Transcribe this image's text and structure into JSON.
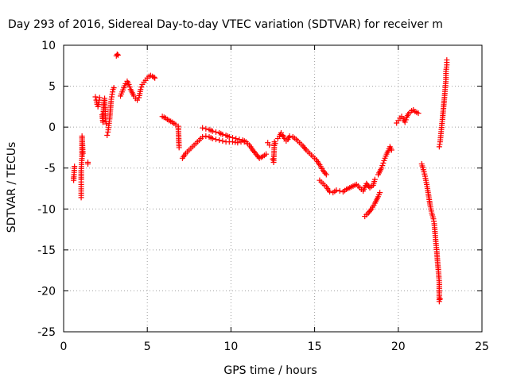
{
  "chart_data": {
    "type": "scatter",
    "title": "Day 293 of 2016, Sidereal Day-to-day VTEC variation (SDTVAR) for receiver m",
    "xlabel": "GPS time / hours",
    "ylabel": "SDTVAR / TECUs",
    "xlim": [
      0,
      25
    ],
    "ylim": [
      -25,
      10
    ],
    "xticks": [
      "0",
      "5",
      "10",
      "15",
      "20",
      "25"
    ],
    "yticks": [
      "10",
      "5",
      "0",
      "-5",
      "-10",
      "-15",
      "-20",
      "-25"
    ],
    "grid": true,
    "marker": "+",
    "color": "#ff0000",
    "series": [
      {
        "name": "SDTVAR",
        "segments": [
          [
            [
              0.6,
              -6.2
            ],
            [
              0.6,
              -6.5
            ],
            [
              0.65,
              -4.8
            ]
          ],
          [
            [
              1.05,
              -8.6
            ],
            [
              1.05,
              -7.8
            ],
            [
              1.05,
              -7.0
            ],
            [
              1.05,
              -6.4
            ],
            [
              1.05,
              -5.3
            ],
            [
              1.1,
              -3.6
            ],
            [
              1.1,
              -2.7
            ],
            [
              1.1,
              -1.8
            ],
            [
              1.1,
              -1.1
            ],
            [
              1.15,
              -3.2
            ]
          ],
          [
            [
              1.45,
              -4.5
            ],
            [
              1.45,
              -4.3
            ]
          ],
          [
            [
              1.9,
              3.7
            ],
            [
              1.95,
              3.3
            ],
            [
              2.0,
              2.8
            ],
            [
              2.05,
              2.5
            ],
            [
              2.1,
              3.0
            ],
            [
              2.15,
              3.6
            ]
          ],
          [
            [
              2.3,
              1.5
            ],
            [
              2.35,
              0.6
            ],
            [
              2.4,
              2.8
            ],
            [
              2.45,
              3.5
            ],
            [
              2.5,
              1.0
            ],
            [
              2.55,
              0.4
            ]
          ],
          [
            [
              2.6,
              -1.0
            ],
            [
              2.65,
              -0.6
            ],
            [
              2.7,
              0.2
            ],
            [
              2.75,
              1.0
            ],
            [
              2.8,
              2.2
            ],
            [
              2.85,
              3.4
            ],
            [
              2.9,
              4.0
            ],
            [
              2.95,
              4.6
            ],
            [
              3.0,
              4.8
            ]
          ],
          [
            [
              3.15,
              8.7
            ],
            [
              3.2,
              8.9
            ],
            [
              3.25,
              8.8
            ]
          ],
          [
            [
              3.4,
              3.8
            ],
            [
              3.5,
              4.3
            ],
            [
              3.6,
              4.8
            ],
            [
              3.7,
              5.3
            ],
            [
              3.8,
              5.6
            ],
            [
              3.9,
              5.2
            ],
            [
              4.0,
              4.6
            ],
            [
              4.1,
              4.2
            ],
            [
              4.2,
              3.8
            ],
            [
              4.3,
              3.5
            ],
            [
              4.4,
              3.3
            ],
            [
              4.5,
              3.6
            ],
            [
              4.6,
              4.6
            ],
            [
              4.7,
              5.2
            ],
            [
              4.8,
              5.5
            ],
            [
              4.9,
              5.7
            ],
            [
              5.0,
              6.0
            ],
            [
              5.1,
              6.2
            ],
            [
              5.2,
              6.3
            ],
            [
              5.3,
              6.2
            ],
            [
              5.4,
              6.1
            ],
            [
              5.45,
              6.0
            ]
          ],
          [
            [
              5.9,
              1.3
            ],
            [
              6.1,
              1.1
            ],
            [
              6.3,
              0.8
            ],
            [
              6.5,
              0.6
            ],
            [
              6.7,
              0.3
            ],
            [
              6.85,
              0.1
            ],
            [
              6.9,
              -2.5
            ]
          ],
          [
            [
              7.1,
              -3.8
            ],
            [
              7.3,
              -3.2
            ],
            [
              7.5,
              -2.8
            ],
            [
              7.7,
              -2.4
            ],
            [
              7.9,
              -2.0
            ],
            [
              8.1,
              -1.6
            ],
            [
              8.3,
              -1.2
            ],
            [
              8.5,
              -1.1
            ],
            [
              8.7,
              -1.2
            ],
            [
              8.9,
              -1.4
            ],
            [
              9.1,
              -1.5
            ],
            [
              9.3,
              -1.6
            ],
            [
              9.5,
              -1.7
            ],
            [
              9.7,
              -1.8
            ],
            [
              9.9,
              -1.8
            ],
            [
              10.1,
              -1.8
            ],
            [
              10.4,
              -1.9
            ],
            [
              10.6,
              -1.8
            ],
            [
              10.8,
              -1.8
            ]
          ],
          [
            [
              8.3,
              -0.1
            ],
            [
              8.5,
              -0.2
            ],
            [
              8.7,
              -0.3
            ],
            [
              8.9,
              -0.5
            ],
            [
              9.1,
              -0.6
            ],
            [
              9.3,
              -0.7
            ],
            [
              9.5,
              -0.9
            ],
            [
              9.7,
              -1.0
            ],
            [
              9.9,
              -1.2
            ],
            [
              10.1,
              -1.3
            ],
            [
              10.3,
              -1.4
            ],
            [
              10.5,
              -1.5
            ],
            [
              10.7,
              -1.6
            ],
            [
              10.9,
              -1.8
            ],
            [
              11.1,
              -2.2
            ],
            [
              11.3,
              -2.8
            ],
            [
              11.5,
              -3.3
            ],
            [
              11.7,
              -3.8
            ],
            [
              11.9,
              -3.6
            ],
            [
              12.1,
              -3.3
            ]
          ],
          [
            [
              12.2,
              -1.9
            ],
            [
              12.3,
              -2.2
            ]
          ],
          [
            [
              12.5,
              -3.9
            ],
            [
              12.55,
              -4.3
            ],
            [
              12.6,
              -1.8
            ],
            [
              12.65,
              -2.0
            ]
          ],
          [
            [
              12.8,
              -1.4
            ],
            [
              12.9,
              -1.1
            ],
            [
              13.0,
              -0.7
            ],
            [
              13.1,
              -1.0
            ],
            [
              13.2,
              -1.4
            ],
            [
              13.3,
              -1.7
            ],
            [
              13.4,
              -1.5
            ],
            [
              13.5,
              -1.1
            ],
            [
              13.7,
              -1.2
            ],
            [
              13.9,
              -1.5
            ],
            [
              14.1,
              -1.9
            ],
            [
              14.3,
              -2.3
            ],
            [
              14.5,
              -2.8
            ],
            [
              14.7,
              -3.2
            ],
            [
              14.9,
              -3.6
            ],
            [
              15.1,
              -4.0
            ],
            [
              15.3,
              -4.6
            ],
            [
              15.5,
              -5.3
            ],
            [
              15.7,
              -5.8
            ]
          ],
          [
            [
              15.3,
              -6.5
            ],
            [
              15.5,
              -6.9
            ],
            [
              15.7,
              -7.3
            ],
            [
              15.9,
              -7.9
            ]
          ],
          [
            [
              16.1,
              -8.0
            ],
            [
              16.3,
              -7.7
            ],
            [
              16.5,
              -7.8
            ],
            [
              16.7,
              -7.9
            ],
            [
              16.9,
              -7.6
            ],
            [
              17.1,
              -7.4
            ],
            [
              17.3,
              -7.2
            ],
            [
              17.5,
              -7.0
            ],
            [
              17.7,
              -7.4
            ],
            [
              17.9,
              -7.8
            ],
            [
              18.1,
              -6.9
            ],
            [
              18.3,
              -7.4
            ],
            [
              18.5,
              -7.1
            ],
            [
              18.6,
              -6.4
            ]
          ],
          [
            [
              18.0,
              -10.9
            ],
            [
              18.2,
              -10.5
            ],
            [
              18.4,
              -10.0
            ],
            [
              18.6,
              -9.3
            ],
            [
              18.8,
              -8.5
            ],
            [
              18.9,
              -8.0
            ]
          ],
          [
            [
              18.8,
              -5.8
            ],
            [
              19.0,
              -5.0
            ],
            [
              19.1,
              -4.4
            ],
            [
              19.2,
              -3.8
            ],
            [
              19.3,
              -3.3
            ],
            [
              19.4,
              -2.9
            ],
            [
              19.5,
              -2.4
            ],
            [
              19.6,
              -2.8
            ]
          ],
          [
            [
              19.9,
              0.5
            ],
            [
              20.0,
              0.8
            ],
            [
              20.1,
              1.1
            ],
            [
              20.2,
              1.3
            ],
            [
              20.3,
              1.0
            ],
            [
              20.4,
              0.6
            ],
            [
              20.5,
              1.2
            ],
            [
              20.6,
              1.6
            ],
            [
              20.7,
              1.8
            ],
            [
              20.8,
              2.0
            ],
            [
              20.9,
              2.1
            ],
            [
              21.0,
              1.9
            ],
            [
              21.1,
              1.8
            ],
            [
              21.2,
              1.7
            ]
          ],
          [
            [
              21.4,
              -4.5
            ],
            [
              21.5,
              -5.2
            ],
            [
              21.6,
              -6.0
            ],
            [
              21.7,
              -7.0
            ],
            [
              21.8,
              -8.2
            ],
            [
              21.9,
              -9.5
            ],
            [
              22.0,
              -10.5
            ],
            [
              22.1,
              -11.2
            ],
            [
              22.15,
              -11.8
            ],
            [
              22.2,
              -13.0
            ],
            [
              22.25,
              -14.2
            ],
            [
              22.3,
              -15.2
            ],
            [
              22.35,
              -16.5
            ],
            [
              22.4,
              -17.6
            ],
            [
              22.45,
              -19.0
            ],
            [
              22.45,
              -21.3
            ],
            [
              22.5,
              -21.0
            ]
          ],
          [
            [
              22.45,
              -2.4
            ],
            [
              22.5,
              -1.8
            ],
            [
              22.55,
              -0.8
            ],
            [
              22.6,
              0.2
            ],
            [
              22.65,
              1.2
            ],
            [
              22.7,
              2.3
            ],
            [
              22.75,
              3.4
            ],
            [
              22.8,
              4.6
            ],
            [
              22.85,
              5.8
            ],
            [
              22.85,
              6.8
            ],
            [
              22.9,
              7.6
            ],
            [
              22.9,
              8.2
            ]
          ]
        ]
      }
    ]
  }
}
